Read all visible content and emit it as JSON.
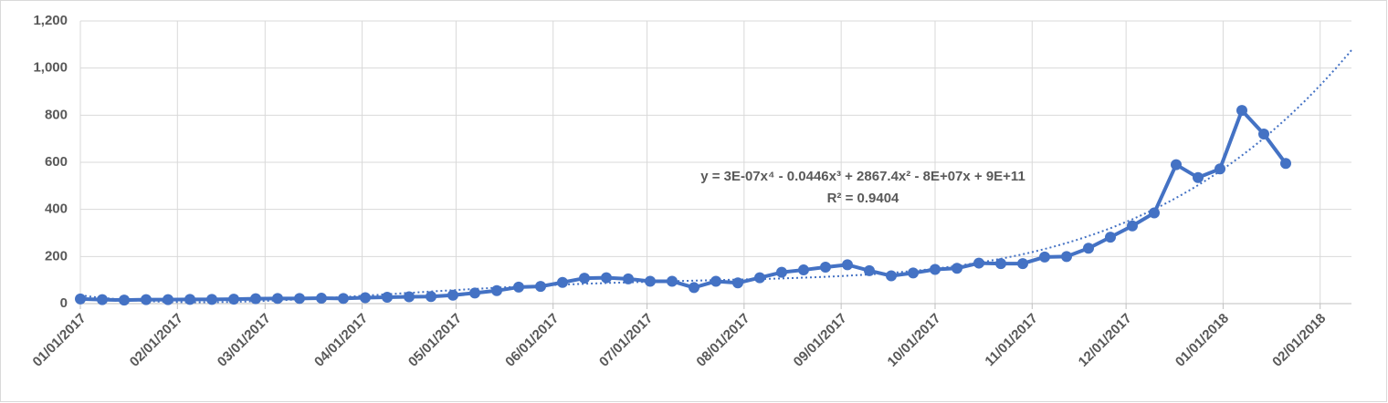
{
  "chart_data": {
    "type": "line",
    "x": [
      "2017-01-01",
      "2017-01-08",
      "2017-01-15",
      "2017-01-22",
      "2017-01-29",
      "2017-02-05",
      "2017-02-12",
      "2017-02-19",
      "2017-02-26",
      "2017-03-05",
      "2017-03-12",
      "2017-03-19",
      "2017-03-26",
      "2017-04-02",
      "2017-04-09",
      "2017-04-16",
      "2017-04-23",
      "2017-04-30",
      "2017-05-07",
      "2017-05-14",
      "2017-05-21",
      "2017-05-28",
      "2017-06-04",
      "2017-06-11",
      "2017-06-18",
      "2017-06-25",
      "2017-07-02",
      "2017-07-09",
      "2017-07-16",
      "2017-07-23",
      "2017-07-30",
      "2017-08-06",
      "2017-08-13",
      "2017-08-20",
      "2017-08-27",
      "2017-09-03",
      "2017-09-10",
      "2017-09-17",
      "2017-09-24",
      "2017-10-01",
      "2017-10-08",
      "2017-10-15",
      "2017-10-22",
      "2017-10-29",
      "2017-11-05",
      "2017-11-12",
      "2017-11-19",
      "2017-11-26",
      "2017-12-03",
      "2017-12-10",
      "2017-12-17",
      "2017-12-24",
      "2017-12-31",
      "2018-01-07",
      "2018-01-14",
      "2018-01-21"
    ],
    "series": [
      {
        "color": "#4472c4",
        "values": [
          20,
          17,
          15,
          17,
          17,
          18,
          18,
          19,
          21,
          22,
          22,
          23,
          22,
          25,
          27,
          29,
          30,
          36,
          45,
          55,
          70,
          73,
          90,
          108,
          110,
          105,
          95,
          95,
          68,
          95,
          88,
          110,
          133,
          143,
          155,
          165,
          140,
          118,
          130,
          145,
          150,
          172,
          170,
          170,
          198,
          200,
          235,
          282,
          330,
          385,
          590,
          535,
          572,
          820,
          720,
          595
        ]
      }
    ],
    "trendline": {
      "type": "polynomial",
      "order": 4,
      "color": "#4472c4",
      "dash": "dotted"
    },
    "annotations": [
      "y = 3E-07x⁴ - 0.0446x³ + 2867.4x² - 8E+07x + 9E+11",
      "R² = 0.9404"
    ],
    "xlim": [
      "2017-01-01",
      "2018-02-11"
    ],
    "xticks": [
      {
        "value": "2017-01-01",
        "label": "01/01/2017"
      },
      {
        "value": "2017-02-01",
        "label": "02/01/2017"
      },
      {
        "value": "2017-03-01",
        "label": "03/01/2017"
      },
      {
        "value": "2017-04-01",
        "label": "04/01/2017"
      },
      {
        "value": "2017-05-01",
        "label": "05/01/2017"
      },
      {
        "value": "2017-06-01",
        "label": "06/01/2017"
      },
      {
        "value": "2017-07-01",
        "label": "07/01/2017"
      },
      {
        "value": "2017-08-01",
        "label": "08/01/2017"
      },
      {
        "value": "2017-09-01",
        "label": "09/01/2017"
      },
      {
        "value": "2017-10-01",
        "label": "10/01/2017"
      },
      {
        "value": "2017-11-01",
        "label": "11/01/2017"
      },
      {
        "value": "2017-12-01",
        "label": "12/01/2017"
      },
      {
        "value": "2018-01-01",
        "label": "01/01/2018"
      },
      {
        "value": "2018-02-01",
        "label": "02/01/2018"
      }
    ],
    "ylim": [
      0,
      1200
    ],
    "yticks": [
      0,
      200,
      400,
      600,
      800,
      {
        "value": 1000,
        "label": "1,000"
      },
      {
        "value": 1200,
        "label": "1,200"
      }
    ],
    "grid": true
  }
}
